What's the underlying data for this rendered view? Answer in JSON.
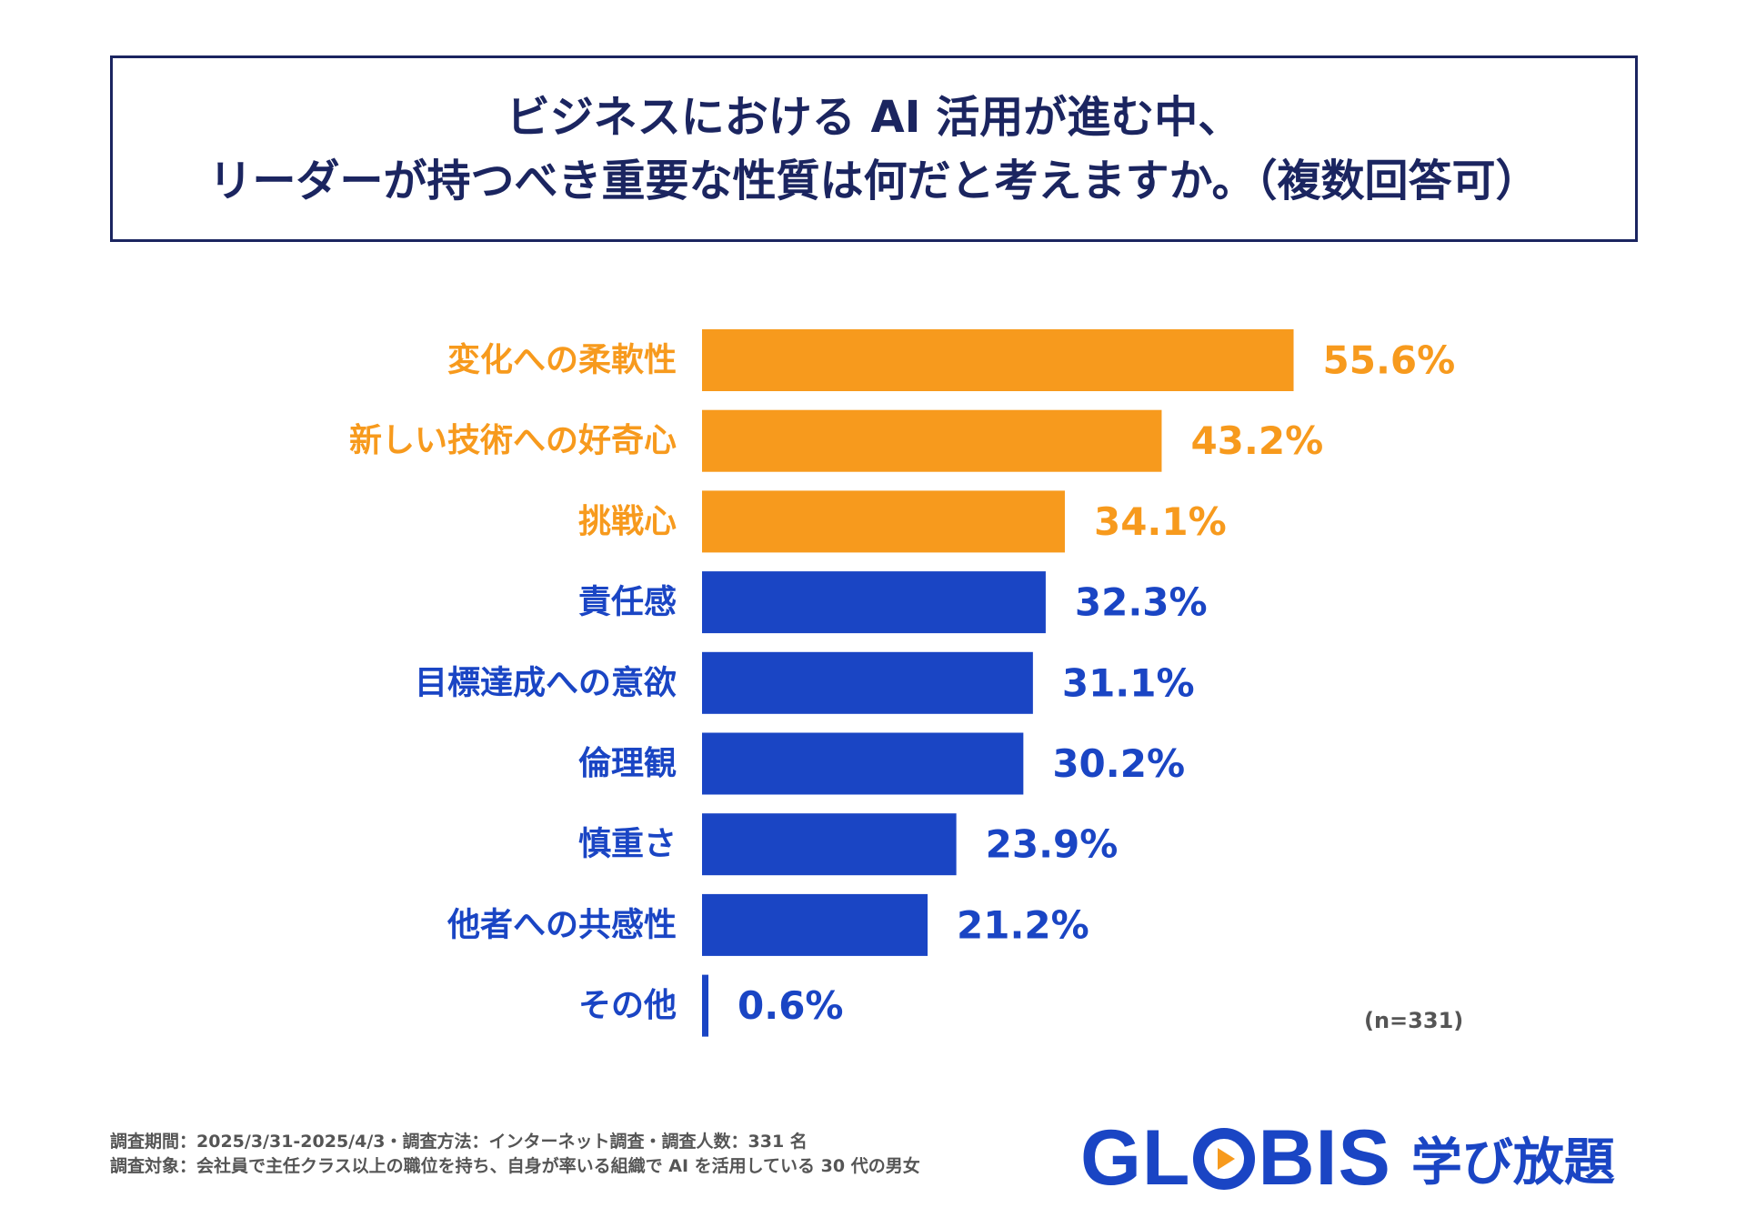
{
  "title": {
    "line1": "ビジネスにおける AI 活用が進む中、",
    "line2": "リーダーが持つべき重要な性質は何だと考えますか。（複数回答可）"
  },
  "chart_data": {
    "type": "bar",
    "orientation": "horizontal",
    "categories": [
      "変化への柔軟性",
      "新しい技術への好奇心",
      "挑戦心",
      "責任感",
      "目標達成への意欲",
      "倫理観",
      "慎重さ",
      "他者への共感性",
      "その他"
    ],
    "values": [
      55.6,
      43.2,
      34.1,
      32.3,
      31.1,
      30.2,
      23.9,
      21.2,
      0.6
    ],
    "value_labels": [
      "55.6%",
      "43.2%",
      "34.1%",
      "32.3%",
      "31.1%",
      "30.2%",
      "23.9%",
      "21.2%",
      "0.6%"
    ],
    "highlight_count": 3,
    "colors": {
      "highlight": "#f79a1d",
      "normal": "#1a45c4"
    },
    "xlim": [
      0,
      60
    ],
    "sample_note": "(n=331)"
  },
  "footnote": {
    "line1": "調査期間：2025/3/31-2025/4/3・調査方法：インターネット調査・調査人数：331 名",
    "line2": "調査対象：会社員で主任クラス以上の職位を持ち、自身が率いる組織で AI を活用している 30 代の男女"
  },
  "logo": {
    "part1": "GL",
    "part2": "BIS",
    "sub": "学び放題",
    "icon": "play-circle-icon"
  }
}
